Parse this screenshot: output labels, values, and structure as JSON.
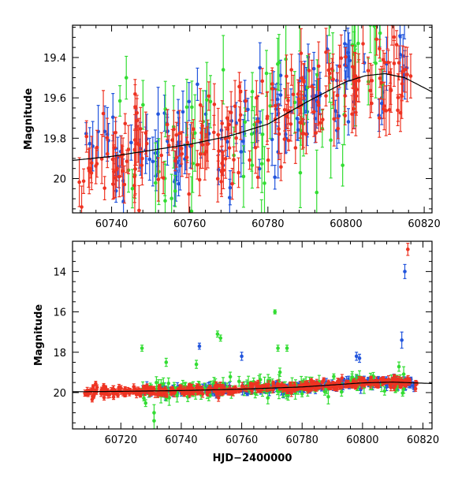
{
  "chart_data": [
    {
      "type": "scatter",
      "title": "",
      "xlabel": "",
      "ylabel": "Magnitude",
      "xlim": [
        60730,
        60822
      ],
      "ylim": [
        20.17,
        19.24
      ],
      "y_inverted": true,
      "xticks_major": [
        60740,
        60760,
        60780,
        60800,
        60820
      ],
      "xtick_labels": [
        "60740",
        "60760",
        "60780",
        "60800",
        "60820"
      ],
      "xticks_minor_step": 4,
      "yticks_major": [
        19.4,
        19.6,
        19.8,
        20
      ],
      "ytick_labels": [
        "19.4",
        "19.6",
        "19.8",
        "20"
      ],
      "yticks_minor_step": 0.05,
      "series": [
        {
          "color": "#2255dd",
          "x_range": [
            60733,
            60817
          ],
          "n_points": 130,
          "typical_error": 0.09
        },
        {
          "color": "#33dd33",
          "x_range": [
            60742,
            60810
          ],
          "n_points": 70,
          "typical_error": 0.14
        },
        {
          "color": "#ee3322",
          "x_range": [
            60731,
            60817
          ],
          "n_points": 220,
          "typical_error": 0.09
        }
      ],
      "trend_curve": {
        "color": "#000000",
        "x": [
          60730,
          60740,
          60750,
          60760,
          60770,
          60780,
          60790,
          60800,
          60805,
          60810,
          60815,
          60822
        ],
        "y": [
          19.91,
          19.89,
          19.86,
          19.83,
          19.79,
          19.73,
          19.62,
          19.52,
          19.49,
          19.48,
          19.5,
          19.57
        ]
      }
    },
    {
      "type": "scatter",
      "title": "",
      "xlabel": "HJD−2400000",
      "ylabel": "Magnitude",
      "xlim": [
        60704,
        60823
      ],
      "ylim": [
        21.8,
        12.5
      ],
      "y_inverted": true,
      "xticks_major": [
        60720,
        60740,
        60760,
        60780,
        60800,
        60820
      ],
      "xtick_labels": [
        "60720",
        "60740",
        "60760",
        "60780",
        "60800",
        "60820"
      ],
      "xticks_minor_step": 4,
      "yticks_major": [
        14,
        16,
        18,
        20
      ],
      "ytick_labels": [
        "14",
        "16",
        "18",
        "20"
      ],
      "yticks_minor_step": 0.5,
      "series": [
        {
          "color": "#2255dd",
          "x_range": [
            60727,
            60818
          ],
          "n_points": 260,
          "typical_error": 0.15
        },
        {
          "color": "#33dd33",
          "x_range": [
            60727,
            60816
          ],
          "n_points": 150,
          "typical_error": 0.25
        },
        {
          "color": "#ee3322",
          "x_range": [
            60708,
            60818
          ],
          "n_points": 420,
          "typical_error": 0.12
        }
      ],
      "outliers": [
        {
          "series": 0,
          "x": 60814,
          "y": 14.0,
          "err": 0.35
        },
        {
          "series": 2,
          "x": 60815,
          "y": 12.9,
          "err": 0.3
        },
        {
          "series": 1,
          "x": 60771,
          "y": 16.0,
          "err": 0.1
        },
        {
          "series": 1,
          "x": 60752,
          "y": 17.1,
          "err": 0.15
        },
        {
          "series": 1,
          "x": 60753,
          "y": 17.3,
          "err": 0.15
        },
        {
          "series": 1,
          "x": 60727,
          "y": 17.8,
          "err": 0.15
        },
        {
          "series": 1,
          "x": 60772,
          "y": 17.8,
          "err": 0.15
        },
        {
          "series": 1,
          "x": 60775,
          "y": 17.8,
          "err": 0.15
        },
        {
          "series": 0,
          "x": 60746,
          "y": 17.7,
          "err": 0.15
        },
        {
          "series": 0,
          "x": 60813,
          "y": 17.4,
          "err": 0.4
        },
        {
          "series": 0,
          "x": 60798,
          "y": 18.2,
          "err": 0.2
        },
        {
          "series": 0,
          "x": 60799,
          "y": 18.3,
          "err": 0.2
        },
        {
          "series": 0,
          "x": 60760,
          "y": 18.2,
          "err": 0.2
        },
        {
          "series": 1,
          "x": 60735,
          "y": 18.5,
          "err": 0.2
        },
        {
          "series": 1,
          "x": 60731,
          "y": 21.0,
          "err": 0.4
        },
        {
          "series": 1,
          "x": 60731,
          "y": 21.4,
          "err": 0.4
        },
        {
          "series": 1,
          "x": 60745,
          "y": 18.6,
          "err": 0.2
        }
      ],
      "trend_curve": {
        "color": "#000000",
        "x": [
          60704,
          60720,
          60740,
          60760,
          60780,
          60800,
          60810,
          60823
        ],
        "y": [
          19.96,
          19.94,
          19.9,
          19.83,
          19.72,
          19.52,
          19.48,
          19.55
        ]
      }
    }
  ]
}
